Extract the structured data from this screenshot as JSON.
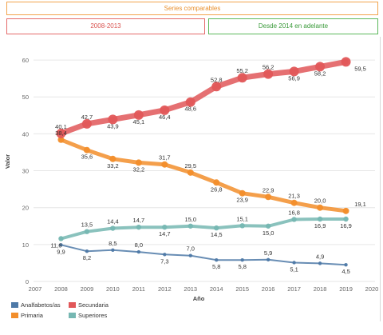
{
  "buttons": {
    "comparable": "Series comparables",
    "range_2008": "2008-2013",
    "range_2014": "Desde 2014 en adelante"
  },
  "colors": {
    "analfabetos": "#4e79a7",
    "primaria": "#f28e2b",
    "secundaria": "#e15759",
    "superiores": "#76b7b2"
  },
  "chart_data": {
    "type": "line",
    "xlabel": "Año",
    "ylabel": "Valor",
    "xlim": [
      2007,
      2020
    ],
    "ylim": [
      0,
      65
    ],
    "x_ticks": [
      2007,
      2008,
      2009,
      2010,
      2011,
      2012,
      2013,
      2014,
      2015,
      2016,
      2017,
      2018,
      2019,
      2020
    ],
    "y_ticks": [
      0,
      10,
      20,
      30,
      40,
      50,
      60
    ],
    "grid": true,
    "legend_position": "bottom-left",
    "x": [
      2008,
      2009,
      2010,
      2011,
      2012,
      2013,
      2014,
      2015,
      2016,
      2017,
      2018,
      2019
    ],
    "series": [
      {
        "name": "Analfabetos/as",
        "color": "#4e79a7",
        "values": [
          9.9,
          8.2,
          8.5,
          8.0,
          7.3,
          7.0,
          5.8,
          5.8,
          5.9,
          5.1,
          4.9,
          4.5
        ],
        "labels": [
          "9,9",
          "8,2",
          "8,5",
          "8,0",
          "7,3",
          "7,0",
          "5,8",
          "5,8",
          "5,9",
          "5,1",
          "4,9",
          "4,5"
        ]
      },
      {
        "name": "Primaria",
        "color": "#f28e2b",
        "values": [
          38.4,
          35.6,
          33.2,
          32.2,
          31.7,
          29.5,
          26.8,
          23.9,
          22.9,
          21.3,
          20.0,
          19.1
        ],
        "labels": [
          "38,4",
          "35,6",
          "33,2",
          "32,2",
          "31,7",
          "29,5",
          "26,8",
          "23,9",
          "22,9",
          "21,3",
          "20,0",
          "19,1"
        ]
      },
      {
        "name": "Secundaria",
        "color": "#e15759",
        "values": [
          40.1,
          42.7,
          43.9,
          45.1,
          46.4,
          48.6,
          52.8,
          55.2,
          56.2,
          56.9,
          58.2,
          59.5
        ],
        "labels": [
          "40,1",
          "42,7",
          "43,9",
          "45,1",
          "46,4",
          "48,6",
          "52,8",
          "55,2",
          "56,2",
          "56,9",
          "58,2",
          "59,5"
        ]
      },
      {
        "name": "Superiores",
        "color": "#76b7b2",
        "values": [
          11.6,
          13.5,
          14.4,
          14.7,
          14.7,
          15.0,
          14.5,
          15.1,
          15.0,
          16.8,
          16.9,
          16.9
        ],
        "labels": [
          "11,6",
          "13,5",
          "14,4",
          "14,7",
          "14,7",
          "15,0",
          "14,5",
          "15,1",
          "15,0",
          "16,8",
          "16,9",
          "16,9"
        ]
      }
    ]
  }
}
